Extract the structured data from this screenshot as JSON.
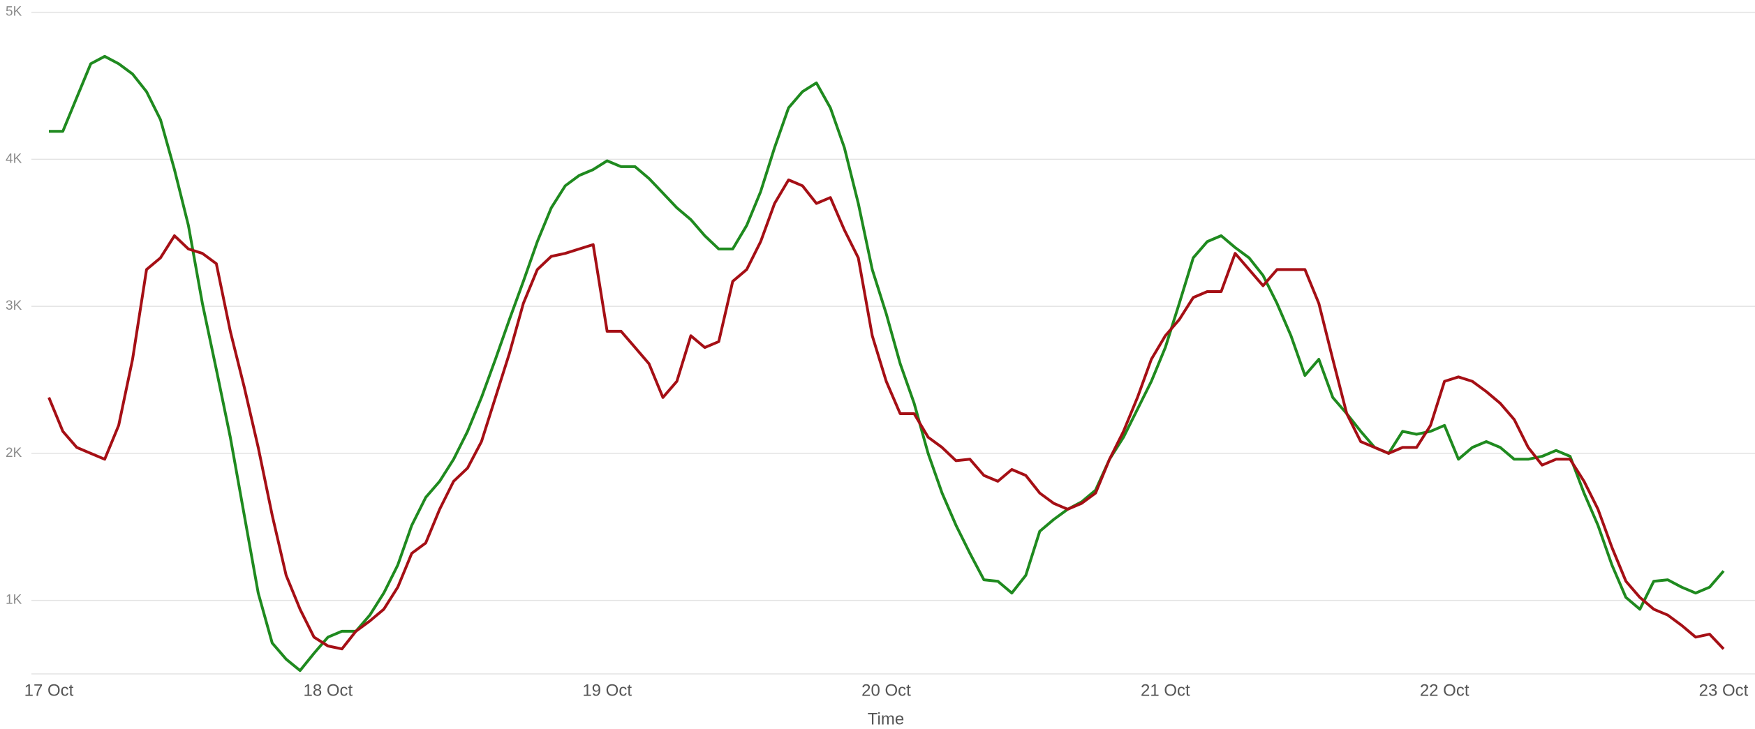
{
  "chart_data": {
    "type": "line",
    "x_label": "Time",
    "x": [
      0,
      0.05,
      0.1,
      0.15,
      0.2,
      0.25,
      0.3,
      0.35,
      0.4,
      0.45,
      0.5,
      0.55,
      0.6,
      0.65,
      0.7,
      0.75,
      0.8,
      0.85,
      0.9,
      0.95,
      1,
      1.05,
      1.1,
      1.15,
      1.2,
      1.25,
      1.3,
      1.35,
      1.4,
      1.45,
      1.5,
      1.55,
      1.6,
      1.65,
      1.7,
      1.75,
      1.8,
      1.85,
      1.9,
      1.95,
      2,
      2.05,
      2.1,
      2.15,
      2.2,
      2.25,
      2.3,
      2.35,
      2.4,
      2.45,
      2.5,
      2.55,
      2.6,
      2.65,
      2.7,
      2.75,
      2.8,
      2.85,
      2.9,
      2.95,
      3,
      3.05,
      3.1,
      3.15,
      3.2,
      3.25,
      3.3,
      3.35,
      3.4,
      3.45,
      3.5,
      3.55,
      3.6,
      3.65,
      3.7,
      3.75,
      3.8,
      3.85,
      3.9,
      3.95,
      4,
      4.05,
      4.1,
      4.15,
      4.2,
      4.25,
      4.3,
      4.35,
      4.4,
      4.45,
      4.5,
      4.55,
      4.6,
      4.65,
      4.7,
      4.75,
      4.8,
      4.85,
      4.9,
      4.95,
      5,
      5.05,
      5.1,
      5.15,
      5.2,
      5.25,
      5.3,
      5.35,
      5.4,
      5.45,
      5.5,
      5.55,
      5.6,
      5.65,
      5.7,
      5.75,
      5.8,
      5.85,
      5.9,
      5.95,
      6
    ],
    "series": [
      {
        "color": "#1f8a1f",
        "values": [
          4190,
          4190,
          4420,
          4650,
          4700,
          4650,
          4580,
          4460,
          4270,
          3930,
          3550,
          3020,
          2570,
          2110,
          1580,
          1050,
          710,
          600,
          523,
          640,
          750,
          790,
          790,
          900,
          1050,
          1240,
          1510,
          1700,
          1810,
          1960,
          2150,
          2380,
          2640,
          2910,
          3170,
          3440,
          3670,
          3820,
          3890,
          3930,
          3990,
          3950,
          3950,
          3870,
          3770,
          3670,
          3590,
          3480,
          3390,
          3390,
          3550,
          3780,
          4080,
          4350,
          4460,
          4520,
          4350,
          4080,
          3700,
          3250,
          2950,
          2610,
          2340,
          2000,
          1730,
          1510,
          1320,
          1140,
          1130,
          1050,
          1170,
          1470,
          1550,
          1620,
          1670,
          1750,
          1960,
          2110,
          2300,
          2490,
          2720,
          3020,
          3330,
          3440,
          3480,
          3400,
          3330,
          3210,
          3020,
          2800,
          2530,
          2640,
          2380,
          2270,
          2150,
          2040,
          2000,
          2150,
          2130,
          2150,
          2190,
          1960,
          2040,
          2080,
          2040,
          1960,
          1960,
          1980,
          2020,
          1980,
          1730,
          1510,
          1240,
          1020,
          940,
          1130,
          1140,
          1090,
          1050,
          1090,
          1200
        ]
      },
      {
        "color": "#a50f15",
        "values": [
          2380,
          2150,
          2040,
          2000,
          1960,
          2190,
          2640,
          3250,
          3330,
          3480,
          3390,
          3360,
          3290,
          2830,
          2450,
          2040,
          1580,
          1170,
          940,
          750,
          690,
          670,
          790,
          860,
          940,
          1090,
          1320,
          1390,
          1620,
          1810,
          1900,
          2080,
          2380,
          2680,
          3020,
          3250,
          3340,
          3360,
          3390,
          3420,
          2830,
          2830,
          2720,
          2610,
          2380,
          2490,
          2800,
          2720,
          2760,
          3170,
          3250,
          3440,
          3700,
          3860,
          3820,
          3700,
          3740,
          3520,
          3330,
          2800,
          2490,
          2270,
          2270,
          2110,
          2040,
          1950,
          1960,
          1850,
          1810,
          1890,
          1850,
          1730,
          1660,
          1620,
          1660,
          1730,
          1960,
          2150,
          2380,
          2640,
          2800,
          2910,
          3060,
          3100,
          3100,
          3360,
          3250,
          3140,
          3250,
          3250,
          3250,
          3020,
          2640,
          2270,
          2080,
          2040,
          2000,
          2040,
          2040,
          2190,
          2490,
          2520,
          2490,
          2420,
          2340,
          2230,
          2040,
          1920,
          1960,
          1960,
          1810,
          1620,
          1360,
          1130,
          1020,
          940,
          900,
          830,
          750,
          770,
          670
        ]
      }
    ],
    "xlim": [
      0,
      6
    ],
    "xticks": [
      {
        "value": 0,
        "label": "17 Oct"
      },
      {
        "value": 1,
        "label": "18 Oct"
      },
      {
        "value": 2,
        "label": "19 Oct"
      },
      {
        "value": 3,
        "label": "20 Oct"
      },
      {
        "value": 4,
        "label": "21 Oct"
      },
      {
        "value": 5,
        "label": "22 Oct"
      },
      {
        "value": 6,
        "label": "23 Oct"
      }
    ],
    "ylim": [
      500,
      5000
    ],
    "yticks": [
      {
        "value": 1000,
        "label": "1K"
      },
      {
        "value": 2000,
        "label": "2K"
      },
      {
        "value": 3000,
        "label": "3K"
      },
      {
        "value": 4000,
        "label": "4K"
      },
      {
        "value": 5000,
        "label": "5K"
      }
    ],
    "grid": true
  }
}
